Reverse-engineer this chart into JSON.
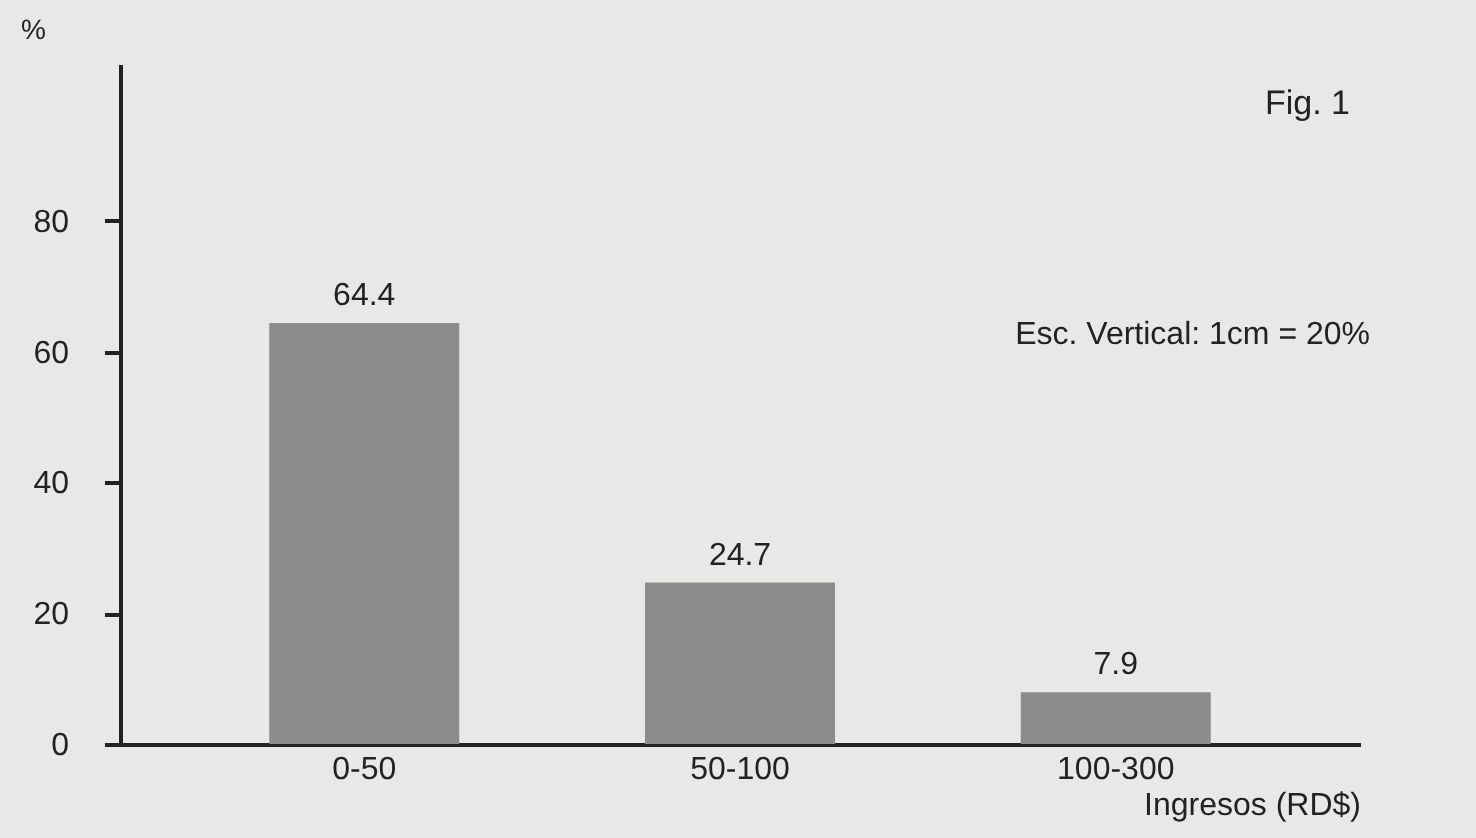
{
  "chart_data": {
    "type": "bar",
    "categories": [
      "0-50",
      "50-100",
      "100-300"
    ],
    "values": [
      64.4,
      24.7,
      7.9
    ],
    "color": "#8c8c8c",
    "data_labels": true,
    "ylim": [
      0,
      104
    ],
    "yticks": [
      0,
      20,
      40,
      60,
      80
    ],
    "ylabel": "%",
    "xlabel": "Ingresos (RD$)",
    "grid": false,
    "annotations": [
      "Fig. 1",
      "Esc. Vertical: 1cm = 20%"
    ]
  }
}
